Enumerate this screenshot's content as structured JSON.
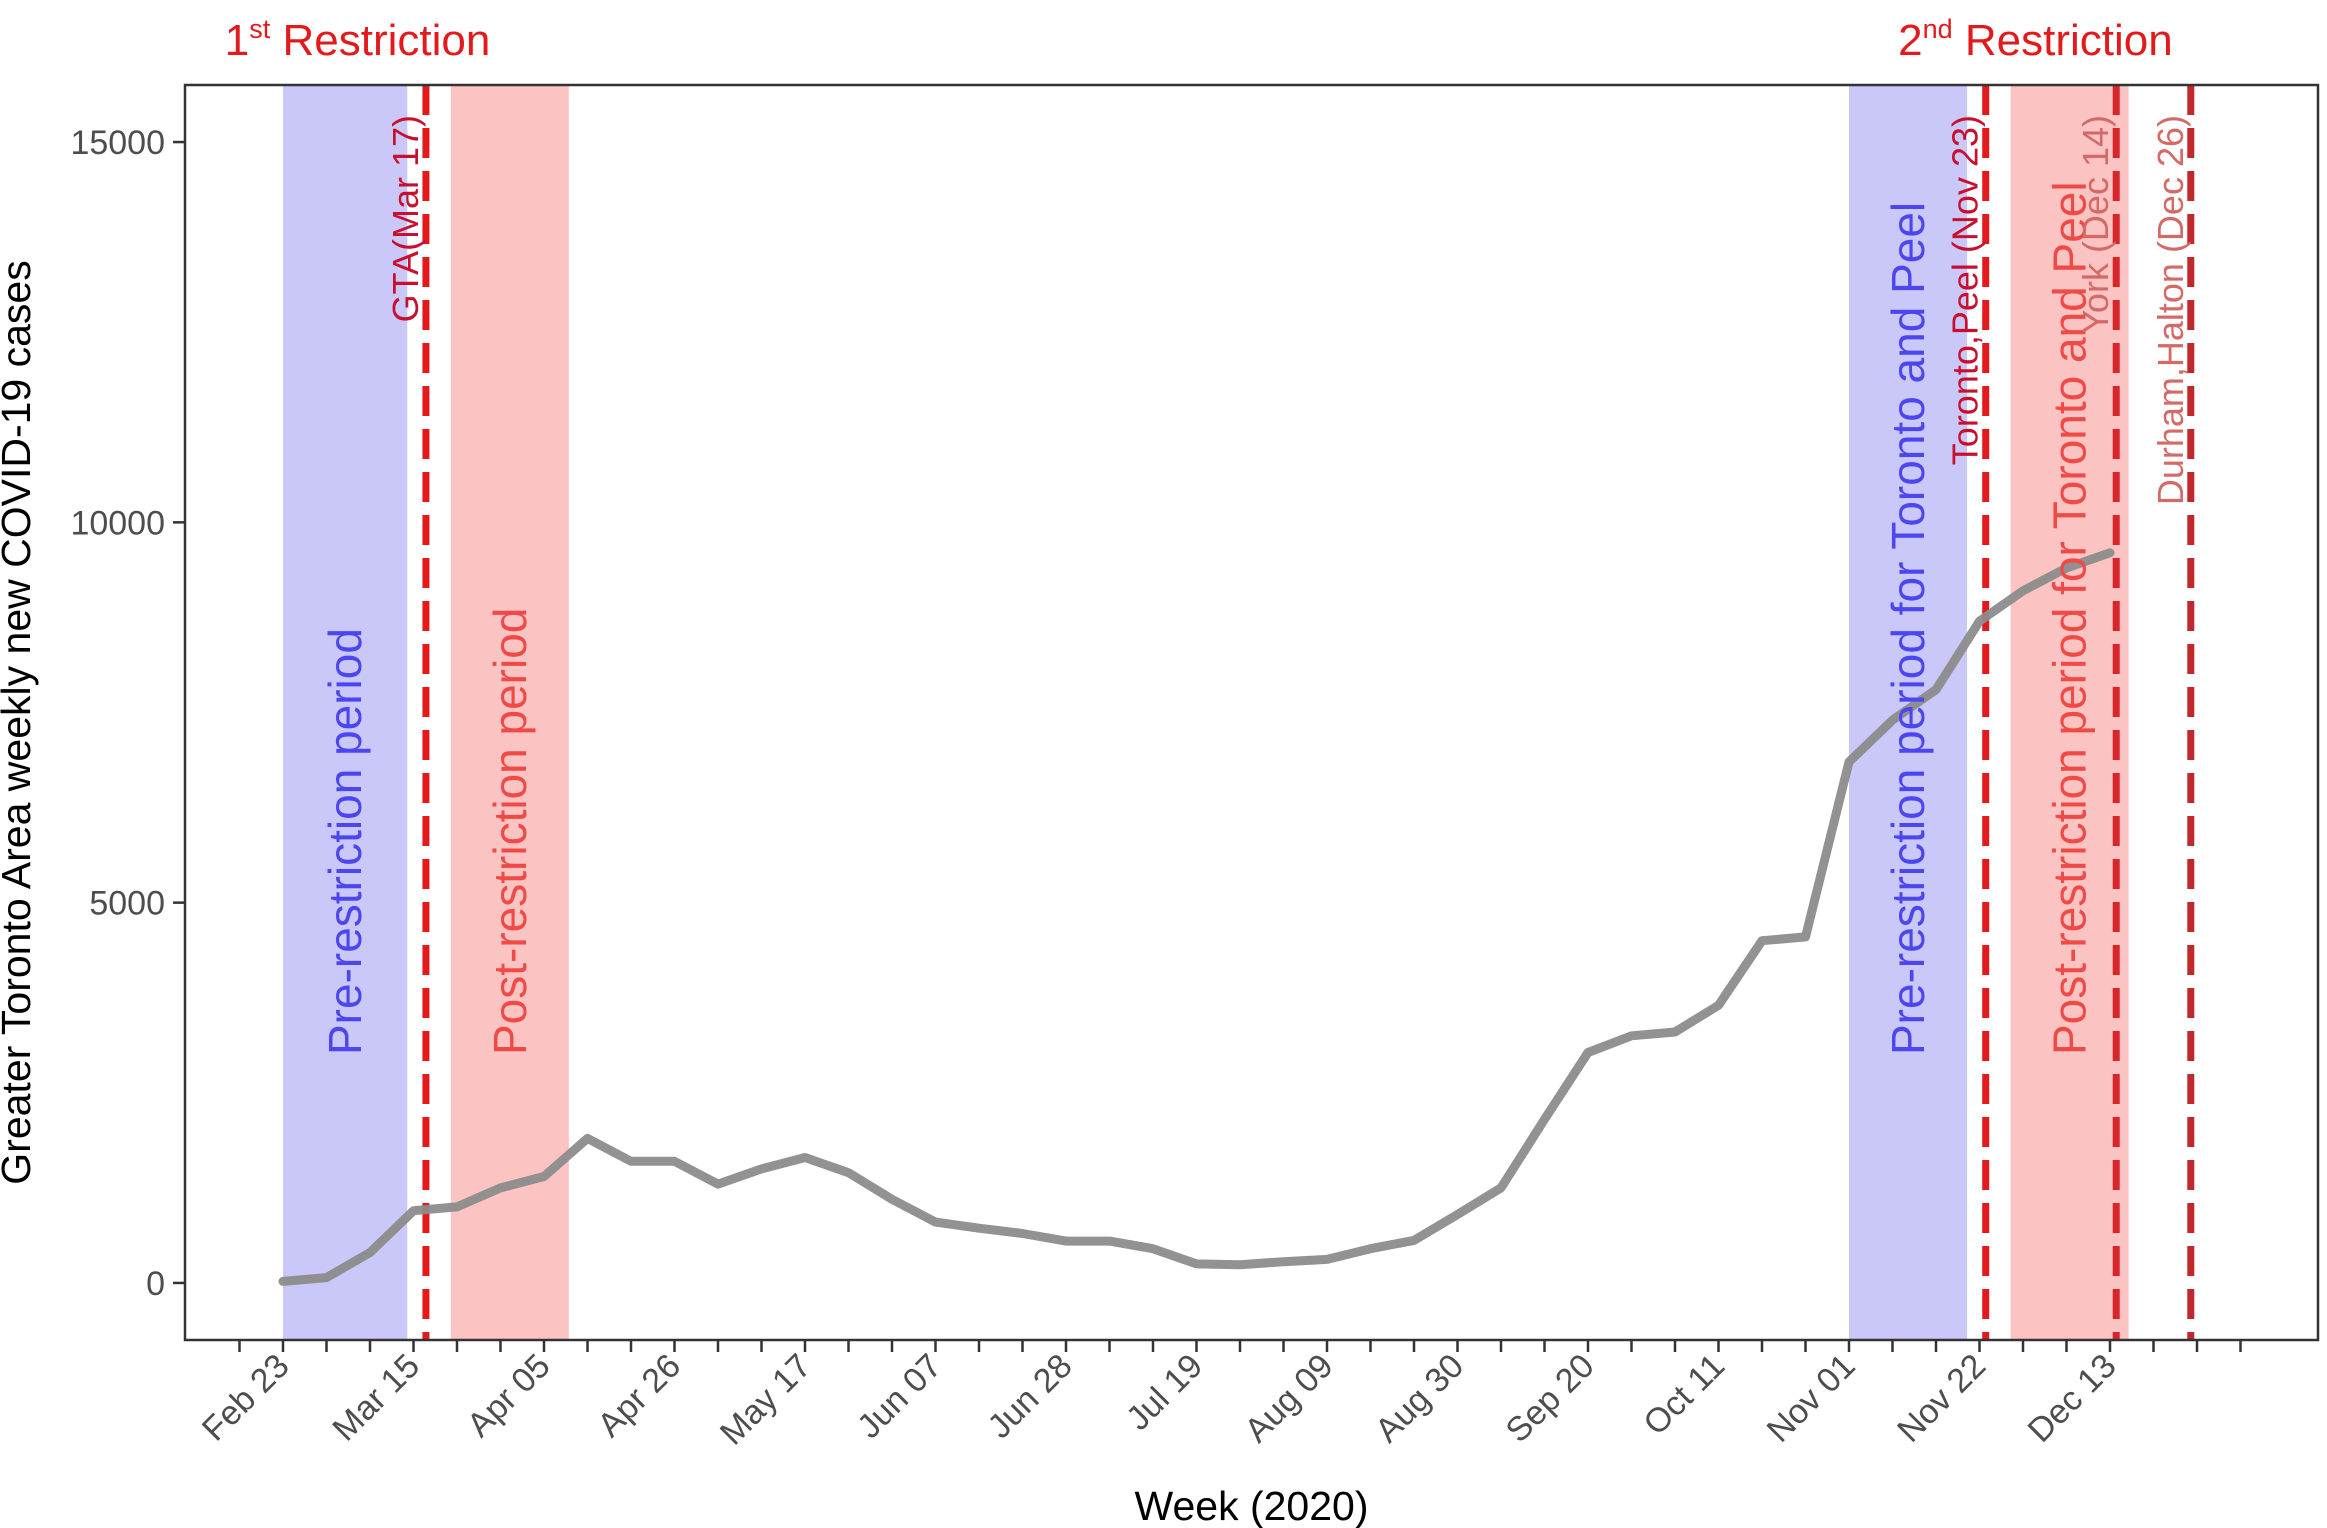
{
  "chart_data": {
    "type": "line",
    "xlabel": "Week (2020)",
    "ylabel": "Greater Toronto Area weekly new COVID-19 cases",
    "ylim": [
      -750,
      15750
    ],
    "yticks": [
      0,
      5000,
      10000,
      15000
    ],
    "xticks": [
      "Feb 23",
      "Mar 15",
      "Apr 05",
      "Apr 26",
      "May 17",
      "Jun 07",
      "Jun 28",
      "Jul 19",
      "Aug 09",
      "Aug 30",
      "Sep 20",
      "Oct 11",
      "Nov 01",
      "Nov 22",
      "Dec 13"
    ],
    "grid": false,
    "legend": "none",
    "line_color": "#8c8c8c",
    "series": [
      {
        "x": [
          "Feb 23",
          "Mar 01",
          "Mar 08",
          "Mar 15",
          "Mar 22",
          "Mar 29",
          "Apr 05",
          "Apr 12",
          "Apr 19",
          "Apr 26",
          "May 03",
          "May 10",
          "May 17",
          "May 24",
          "May 31",
          "Jun 07",
          "Jun 14",
          "Jun 21",
          "Jun 28",
          "Jul 05",
          "Jul 12",
          "Jul 19",
          "Jul 26",
          "Aug 02",
          "Aug 09",
          "Aug 16",
          "Aug 23",
          "Aug 30",
          "Sep 06",
          "Sep 13",
          "Sep 20",
          "Sep 27",
          "Oct 04",
          "Oct 11",
          "Oct 18",
          "Oct 25",
          "Nov 01",
          "Nov 08",
          "Nov 15",
          "Nov 22",
          "Nov 29",
          "Dec 06",
          "Dec 13"
        ],
        "values": [
          20,
          70,
          400,
          950,
          1000,
          1250,
          1400,
          1900,
          1600,
          1600,
          1300,
          1500,
          1650,
          1450,
          1100,
          800,
          720,
          650,
          550,
          550,
          450,
          250,
          240,
          280,
          310,
          450,
          560,
          900,
          1250,
          2150,
          3030,
          3250,
          3300,
          3650,
          4500,
          4550,
          6850,
          7400,
          7800,
          8700,
          9100,
          9400,
          9600
        ]
      }
    ],
    "bands": [
      {
        "start": "Feb 23",
        "end": "Mar 14",
        "color": "#c9c8f8",
        "label": "Pre-restriction period",
        "label_color": "#4b46f0"
      },
      {
        "start": "Mar 21",
        "end": "Apr 09",
        "color": "#fbc4c2",
        "label": "Post-restriction period",
        "label_color": "#f04a46"
      },
      {
        "start": "Nov 01",
        "end": "Nov 20",
        "color": "#c9c8f8",
        "label": "Pre-restriction period for Toronto and Peel",
        "label_color": "#4b46f0"
      },
      {
        "start": "Nov 27",
        "end": "Dec 16",
        "color": "#fbc4c2",
        "label": "Post-restriction period for Toronto and Peel",
        "label_color": "#f04a46"
      }
    ],
    "vlines": [
      {
        "date": "Mar 17",
        "color": "#e31a1c",
        "label": "GTA(Mar 17)",
        "label_color": "#c8102e"
      },
      {
        "date": "Nov 23",
        "color": "#e31a1c",
        "label": "Toronto,Peel (Nov 23)",
        "label_color": "#c8102e"
      },
      {
        "date": "Dec 14",
        "color": "#d8252c",
        "label": "York (Dec 14)",
        "label_color": "#d46a66"
      },
      {
        "date": "Dec 26",
        "color": "#c0282c",
        "label": "Durham,Halton (Dec 26)",
        "label_color": "#d46a66"
      }
    ],
    "top_labels": [
      {
        "num": "1",
        "sup": "st",
        "text": " Restriction",
        "anchor_date": "Mar 06"
      },
      {
        "num": "2",
        "sup": "nd",
        "text": " Restriction",
        "anchor_date": "Dec 01"
      }
    ]
  }
}
